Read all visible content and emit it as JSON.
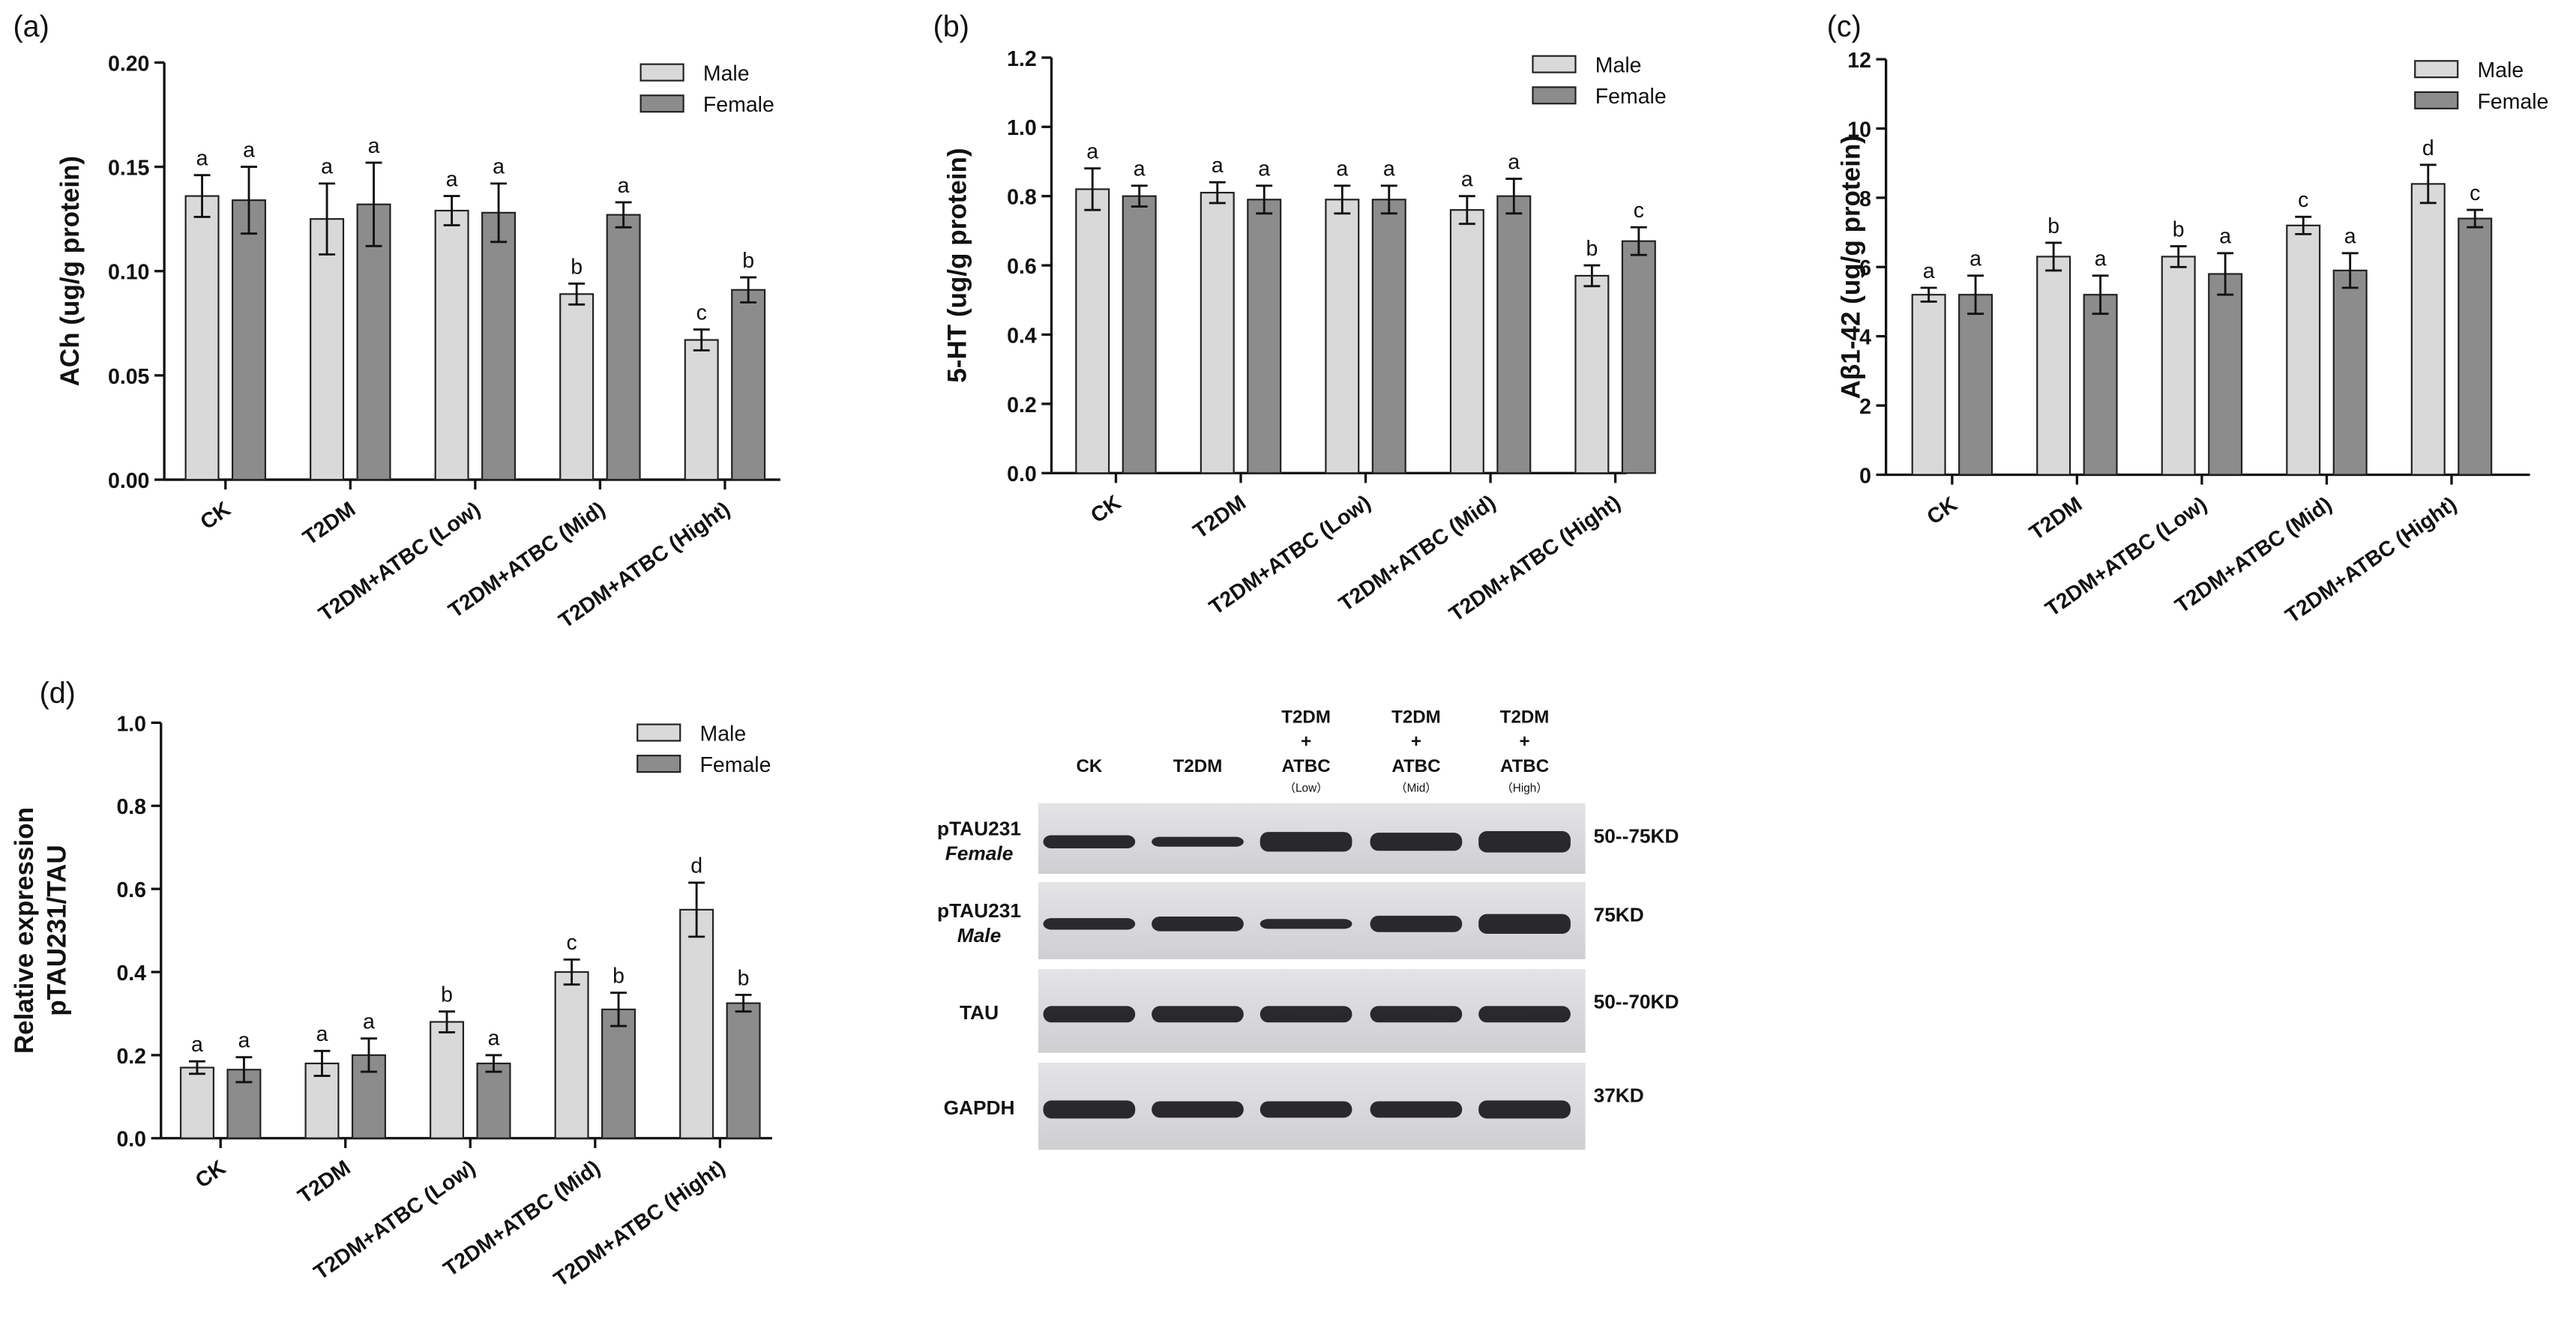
{
  "chart_data": [
    {
      "type": "bar",
      "panel": "(a)",
      "y_label": [
        "ACh (ug/g protein)"
      ],
      "categories": [
        "CK",
        "T2DM",
        "T2DM+ATBC (Low)",
        "T2DM+ATBC (Mid)",
        "T2DM+ATBC (Hight)"
      ],
      "series": [
        {
          "name": "Male",
          "color": "#d9d9d9",
          "values": [
            0.136,
            0.125,
            0.129,
            0.089,
            0.067
          ],
          "errors": [
            0.01,
            0.017,
            0.007,
            0.005,
            0.005
          ],
          "letters": [
            "a",
            "a",
            "a",
            "b",
            "c"
          ]
        },
        {
          "name": "Female",
          "color": "#8c8c8c",
          "values": [
            0.134,
            0.132,
            0.128,
            0.127,
            0.091
          ],
          "errors": [
            0.016,
            0.02,
            0.014,
            0.006,
            0.006
          ],
          "letters": [
            "a",
            "a",
            "a",
            "a",
            "b"
          ]
        }
      ],
      "ylim": [
        0,
        0.2
      ],
      "yticks": [
        {
          "value": 0,
          "label": "0.00"
        },
        {
          "value": 0.05,
          "label": "0.05"
        },
        {
          "value": 0.1,
          "label": "0.10"
        },
        {
          "value": 0.15,
          "label": "0.15"
        },
        {
          "value": 0.2,
          "label": "0.20"
        }
      ]
    },
    {
      "type": "bar",
      "panel": "(b)",
      "y_label": [
        "5-HT (ug/g protein)"
      ],
      "categories": [
        "CK",
        "T2DM",
        "T2DM+ATBC (Low)",
        "T2DM+ATBC (Mid)",
        "T2DM+ATBC (Hight)"
      ],
      "series": [
        {
          "name": "Male",
          "color": "#d9d9d9",
          "values": [
            0.82,
            0.81,
            0.79,
            0.76,
            0.57
          ],
          "errors": [
            0.06,
            0.03,
            0.04,
            0.04,
            0.03
          ],
          "letters": [
            "a",
            "a",
            "a",
            "a",
            "b"
          ]
        },
        {
          "name": "Female",
          "color": "#8c8c8c",
          "values": [
            0.8,
            0.79,
            0.79,
            0.8,
            0.67
          ],
          "errors": [
            0.03,
            0.04,
            0.04,
            0.05,
            0.04
          ],
          "letters": [
            "a",
            "a",
            "a",
            "a",
            "c"
          ]
        }
      ],
      "ylim": [
        0,
        1.2
      ],
      "yticks": [
        {
          "value": 0,
          "label": "0.0"
        },
        {
          "value": 0.2,
          "label": "0.2"
        },
        {
          "value": 0.4,
          "label": "0.4"
        },
        {
          "value": 0.6,
          "label": "0.6"
        },
        {
          "value": 0.8,
          "label": "0.8"
        },
        {
          "value": 1,
          "label": "1.0"
        },
        {
          "value": 1.2,
          "label": "1.2"
        }
      ]
    },
    {
      "type": "bar",
      "panel": "(c)",
      "y_label": [
        "Aβ1-42 (ug/g protein)"
      ],
      "categories": [
        "CK",
        "T2DM",
        "T2DM+ATBC (Low)",
        "T2DM+ATBC (Mid)",
        "T2DM+ATBC (Hight)"
      ],
      "series": [
        {
          "name": "Male",
          "color": "#d9d9d9",
          "values": [
            5.2,
            6.3,
            6.3,
            7.2,
            8.4
          ],
          "errors": [
            0.2,
            0.4,
            0.3,
            0.25,
            0.55
          ],
          "letters": [
            "a",
            "b",
            "b",
            "c",
            "d"
          ]
        },
        {
          "name": "Female",
          "color": "#8c8c8c",
          "values": [
            5.2,
            5.2,
            5.8,
            5.9,
            7.4
          ],
          "errors": [
            0.55,
            0.55,
            0.6,
            0.5,
            0.25
          ],
          "letters": [
            "a",
            "a",
            "a",
            "a",
            "c"
          ]
        }
      ],
      "ylim": [
        0,
        12
      ],
      "yticks": [
        0,
        2,
        4,
        6,
        8,
        10,
        12
      ]
    },
    {
      "type": "bar",
      "panel": "(d)",
      "y_label": [
        "Relative expression",
        "pTAU231/TAU"
      ],
      "categories": [
        "CK",
        "T2DM",
        "T2DM+ATBC (Low)",
        "T2DM+ATBC (Mid)",
        "T2DM+ATBC (Hight)"
      ],
      "series": [
        {
          "name": "Male",
          "color": "#d9d9d9",
          "values": [
            0.17,
            0.18,
            0.28,
            0.4,
            0.55
          ],
          "errors": [
            0.015,
            0.03,
            0.025,
            0.03,
            0.065
          ],
          "letters": [
            "a",
            "a",
            "b",
            "c",
            "d"
          ]
        },
        {
          "name": "Female",
          "color": "#8c8c8c",
          "values": [
            0.165,
            0.2,
            0.18,
            0.31,
            0.325
          ],
          "errors": [
            0.03,
            0.04,
            0.02,
            0.04,
            0.02
          ],
          "letters": [
            "a",
            "a",
            "a",
            "b",
            "b"
          ]
        }
      ],
      "ylim": [
        0,
        1
      ],
      "yticks": [
        {
          "value": 0,
          "label": "0.0"
        },
        {
          "value": 0.2,
          "label": "0.2"
        },
        {
          "value": 0.4,
          "label": "0.4"
        },
        {
          "value": 0.6,
          "label": "0.6"
        },
        {
          "value": 0.8,
          "label": "0.8"
        },
        {
          "value": 1,
          "label": "1.0"
        }
      ]
    }
  ],
  "blot": {
    "lanes": [
      {
        "lines": [
          "CK"
        ]
      },
      {
        "lines": [
          "T2DM"
        ]
      },
      {
        "lines": [
          "T2DM",
          "+",
          "ATBC"
        ],
        "sub": "（Low）"
      },
      {
        "lines": [
          "T2DM",
          "+",
          "ATBC"
        ],
        "sub": "（Mid）"
      },
      {
        "lines": [
          "T2DM",
          "+",
          "ATBC"
        ],
        "sub": "（High）"
      }
    ],
    "rows": [
      {
        "label": "pTAU231",
        "sublabel": "Female",
        "size": "50--75KD"
      },
      {
        "label": "pTAU231",
        "sublabel": "Male",
        "size": "75KD"
      },
      {
        "label": "TAU",
        "size": "50--70KD"
      },
      {
        "label": "GAPDH",
        "size": "37KD"
      }
    ]
  }
}
